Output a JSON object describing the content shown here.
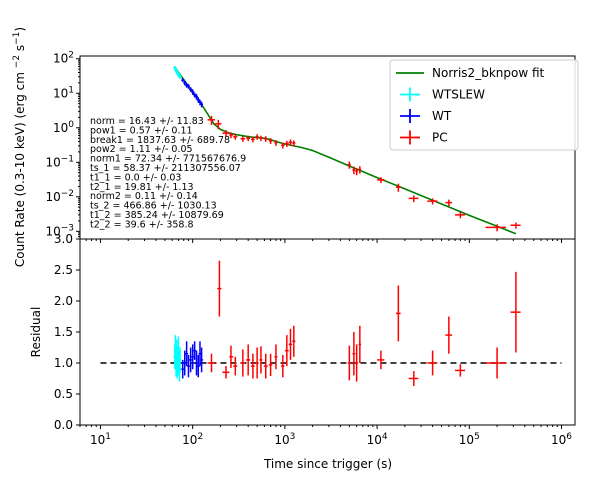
{
  "chart_data": [
    {
      "type": "scatter",
      "title": "",
      "xlabel": "",
      "ylabel": "Count Rate (0.3-10 keV) (erg cm^-2 s^-1)",
      "xscale": "log",
      "yscale": "log",
      "xlim": [
        6,
        1400000
      ],
      "ylim": [
        0.0006,
        120
      ],
      "yticks": [
        {
          "value": 0.001,
          "mant": "10",
          "exp": "−3"
        },
        {
          "value": 0.01,
          "mant": "10",
          "exp": "−2"
        },
        {
          "value": 0.1,
          "mant": "10",
          "exp": "−1"
        },
        {
          "value": 1,
          "mant": "10",
          "exp": "0"
        },
        {
          "value": 10,
          "mant": "10",
          "exp": "1"
        },
        {
          "value": 100,
          "mant": "10",
          "exp": "2"
        }
      ],
      "legend_position": "top-right",
      "params_text": [
        "norm = 16.43 +/- 11.83",
        "pow1 = 0.57 +/- 0.11",
        "break1 = 1837.63 +/- 689.78",
        "pow2 = 1.11 +/- 0.05",
        "norm1 = 72.34 +/- 771567676.9",
        "ts_1 = 58.37 +/- 211307556.07",
        "t1_1 = 0.0 +/- 0.03",
        "t2_1 = 19.81 +/- 1.13",
        "norm2 = 0.11 +/- 0.14",
        "ts_2 = 466.86 +/- 1030.13",
        "t1_2 = 385.24 +/- 10879.69",
        "t2_2 = 39.6 +/- 358.8"
      ],
      "model": {
        "name": "Norris2_bknpow fit",
        "color": "#008000",
        "points": [
          [
            64,
            58
          ],
          [
            70,
            40
          ],
          [
            80,
            25
          ],
          [
            90,
            16
          ],
          [
            100,
            11
          ],
          [
            115,
            6.5
          ],
          [
            130,
            4
          ],
          [
            150,
            2.2
          ],
          [
            170,
            1.3
          ],
          [
            200,
            0.9
          ],
          [
            250,
            0.7
          ],
          [
            300,
            0.63
          ],
          [
            400,
            0.55
          ],
          [
            500,
            0.52
          ],
          [
            600,
            0.5
          ],
          [
            700,
            0.45
          ],
          [
            800,
            0.4
          ],
          [
            1000,
            0.34
          ],
          [
            1500,
            0.27
          ],
          [
            2000,
            0.22
          ],
          [
            3000,
            0.14
          ],
          [
            5000,
            0.078
          ],
          [
            10000,
            0.036
          ],
          [
            20000,
            0.017
          ],
          [
            50000,
            0.0062
          ],
          [
            100000,
            0.0029
          ],
          [
            200000,
            0.0014
          ],
          [
            320000,
            0.00085
          ]
        ]
      },
      "series": [
        {
          "name": "WTSLEW",
          "color": "#00ffff",
          "points": [
            [
              64,
              55,
              7
            ],
            [
              65,
              50,
              6
            ],
            [
              66,
              46,
              6
            ],
            [
              67,
              42,
              5
            ],
            [
              68,
              39,
              5
            ],
            [
              69,
              37,
              5
            ],
            [
              70,
              35,
              5
            ],
            [
              71,
              33,
              4
            ],
            [
              72,
              31,
              4
            ],
            [
              73,
              30,
              4
            ]
          ]
        },
        {
          "name": "WT",
          "color": "#0000ff",
          "points": [
            [
              78,
              24,
              3
            ],
            [
              82,
              20,
              3
            ],
            [
              86,
              17,
              2.5
            ],
            [
              90,
              16,
              2.5
            ],
            [
              95,
              13,
              2
            ],
            [
              100,
              11,
              2
            ],
            [
              105,
              9,
              1.5
            ],
            [
              110,
              8,
              1.5
            ],
            [
              115,
              6.5,
              1.2
            ],
            [
              120,
              5.5,
              1
            ],
            [
              125,
              4.8,
              0.9
            ]
          ]
        },
        {
          "name": "PC",
          "color": "#ff0000",
          "points": [
            [
              160,
              1.7,
              0.5,
              145,
              175
            ],
            [
              190,
              1.3,
              0.4,
              175,
              205
            ],
            [
              230,
              0.7,
              0.15,
              210,
              250
            ],
            [
              260,
              0.62,
              0.12,
              250,
              275
            ],
            [
              290,
              0.55,
              0.1,
              275,
              305
            ],
            [
              350,
              0.48,
              0.09,
              330,
              370
            ],
            [
              400,
              0.5,
              0.09,
              380,
              420
            ],
            [
              450,
              0.46,
              0.08,
              430,
              470
            ],
            [
              500,
              0.55,
              0.1,
              480,
              520
            ],
            [
              550,
              0.5,
              0.09,
              530,
              570
            ],
            [
              620,
              0.48,
              0.09,
              590,
              650
            ],
            [
              700,
              0.42,
              0.08,
              670,
              730
            ],
            [
              800,
              0.37,
              0.07,
              770,
              830
            ],
            [
              950,
              0.31,
              0.06,
              910,
              990
            ],
            [
              1050,
              0.35,
              0.07,
              1000,
              1100
            ],
            [
              1150,
              0.38,
              0.08,
              1100,
              1200
            ],
            [
              1250,
              0.36,
              0.07,
              1200,
              1300
            ],
            [
              5000,
              0.085,
              0.02,
              4800,
              5200
            ],
            [
              5600,
              0.06,
              0.015,
              5400,
              5800
            ],
            [
              6000,
              0.055,
              0.013,
              5800,
              6200
            ],
            [
              6500,
              0.062,
              0.015,
              6300,
              6700
            ],
            [
              11000,
              0.031,
              0.006,
              10000,
              12000
            ],
            [
              17000,
              0.019,
              0.005,
              16000,
              18000
            ],
            [
              25000,
              0.009,
              0.002,
              22000,
              28000
            ],
            [
              40000,
              0.0075,
              0.0015,
              35000,
              45000
            ],
            [
              60000,
              0.0068,
              0.0015,
              55000,
              65000
            ],
            [
              80000,
              0.003,
              0.0006,
              70000,
              90000
            ],
            [
              200000,
              0.0013,
              0.0003,
              150000,
              250000
            ],
            [
              320000,
              0.0015,
              0.0003,
              280000,
              360000
            ]
          ]
        }
      ]
    },
    {
      "type": "scatter",
      "title": "",
      "xlabel": "Time since trigger (s)",
      "ylabel": "Residual",
      "xscale": "log",
      "xlim": [
        6,
        1400000
      ],
      "ylim": [
        0,
        3
      ],
      "yticks": [
        0,
        0.5,
        1,
        1.5,
        2,
        2.5,
        3
      ],
      "ytick_labels": [
        "0.0",
        "0.5",
        "1.0",
        "1.5",
        "2.0",
        "2.5",
        "3.0"
      ],
      "xticks": [
        {
          "value": 10,
          "mant": "10",
          "exp": "1"
        },
        {
          "value": 100,
          "mant": "10",
          "exp": "2"
        },
        {
          "value": 1000,
          "mant": "10",
          "exp": "3"
        },
        {
          "value": 10000,
          "mant": "10",
          "exp": "4"
        },
        {
          "value": 100000,
          "mant": "10",
          "exp": "5"
        },
        {
          "value": 1000000,
          "mant": "10",
          "exp": "6"
        }
      ],
      "reference_line": {
        "y": 1.0,
        "x_from": 10,
        "x_to": 1000000,
        "style": "dashed",
        "color": "#000000"
      },
      "series": [
        {
          "name": "WTSLEW",
          "color": "#00ffff",
          "points": [
            [
              64,
              1.1,
              0.2
            ],
            [
              65,
              1.2,
              0.25
            ],
            [
              66,
              1.0,
              0.22
            ],
            [
              67,
              1.15,
              0.23
            ],
            [
              68,
              0.95,
              0.2
            ],
            [
              69,
              1.05,
              0.22
            ],
            [
              70,
              1.25,
              0.18
            ],
            [
              71,
              1.0,
              0.2
            ],
            [
              72,
              0.9,
              0.2
            ],
            [
              73,
              1.05,
              0.2
            ]
          ]
        },
        {
          "name": "WT",
          "color": "#0000ff",
          "points": [
            [
              78,
              0.9,
              0.15
            ],
            [
              82,
              1.0,
              0.2
            ],
            [
              86,
              1.15,
              0.2
            ],
            [
              90,
              0.95,
              0.18
            ],
            [
              95,
              1.05,
              0.2
            ],
            [
              100,
              1.1,
              0.2
            ],
            [
              105,
              1.2,
              0.15
            ],
            [
              110,
              1.0,
              0.2
            ],
            [
              115,
              0.95,
              0.18
            ],
            [
              120,
              1.15,
              0.2
            ],
            [
              125,
              1.05,
              0.2
            ]
          ]
        },
        {
          "name": "PC",
          "color": "#ff0000",
          "points": [
            [
              160,
              1.0,
              0.15,
              145,
              175
            ],
            [
              195,
              2.2,
              0.45,
              185,
              205
            ],
            [
              230,
              0.85,
              0.1,
              210,
              250
            ],
            [
              260,
              1.1,
              0.18,
              250,
              275
            ],
            [
              290,
              0.95,
              0.15,
              275,
              305
            ],
            [
              350,
              1.0,
              0.22,
              330,
              370
            ],
            [
              400,
              1.05,
              0.25,
              380,
              420
            ],
            [
              450,
              0.95,
              0.2,
              430,
              470
            ],
            [
              500,
              1.0,
              0.25,
              480,
              520
            ],
            [
              550,
              1.05,
              0.22,
              530,
              570
            ],
            [
              620,
              0.95,
              0.2,
              590,
              650
            ],
            [
              700,
              0.97,
              0.18,
              670,
              730
            ],
            [
              800,
              1.1,
              0.2,
              770,
              830
            ],
            [
              950,
              0.95,
              0.18,
              910,
              990
            ],
            [
              1050,
              1.2,
              0.25,
              1000,
              1100
            ],
            [
              1150,
              1.3,
              0.25,
              1100,
              1200
            ],
            [
              1250,
              1.35,
              0.25,
              1200,
              1300
            ],
            [
              5000,
              1.0,
              0.28,
              4800,
              5200
            ],
            [
              5600,
              1.15,
              0.35,
              5400,
              5800
            ],
            [
              6000,
              1.0,
              0.3,
              5800,
              6200
            ],
            [
              6500,
              1.3,
              0.3,
              6300,
              6700
            ],
            [
              11000,
              1.05,
              0.15,
              10000,
              12000
            ],
            [
              17000,
              1.8,
              0.45,
              16000,
              18000
            ],
            [
              25000,
              0.75,
              0.12,
              22000,
              28000
            ],
            [
              40000,
              1.0,
              0.2,
              35000,
              45000
            ],
            [
              60000,
              1.45,
              0.3,
              55000,
              65000
            ],
            [
              80000,
              0.88,
              0.1,
              70000,
              90000
            ],
            [
              200000,
              1.0,
              0.25,
              150000,
              250000
            ],
            [
              320000,
              1.82,
              0.65,
              280000,
              360000
            ]
          ]
        }
      ]
    }
  ]
}
